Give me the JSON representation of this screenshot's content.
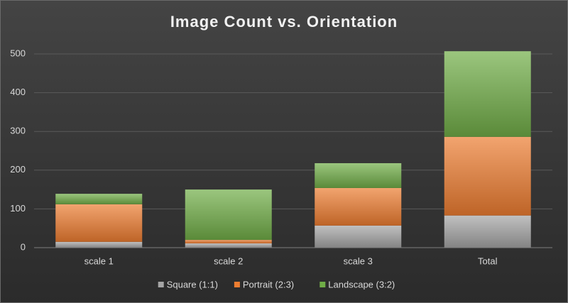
{
  "chart_data": {
    "type": "stacked_bar",
    "title": "Image Count vs. Orientation",
    "categories": [
      "scale 1",
      "scale 2",
      "scale 3",
      "Total"
    ],
    "series": [
      {
        "name": "Square (1:1)",
        "color": "#a5a5a5",
        "values": [
          15,
          11,
          57,
          83
        ]
      },
      {
        "name": "Portrait (2:3)",
        "color": "#ed7d31",
        "values": [
          97,
          9,
          97,
          203
        ]
      },
      {
        "name": "Landscape (3:2)",
        "color": "#70ad47",
        "values": [
          27,
          130,
          64,
          221
        ]
      }
    ],
    "ylim": [
      0,
      500
    ],
    "yticks": [
      0,
      100,
      200,
      300,
      400,
      500
    ],
    "grid": true,
    "legend": "bottom"
  }
}
